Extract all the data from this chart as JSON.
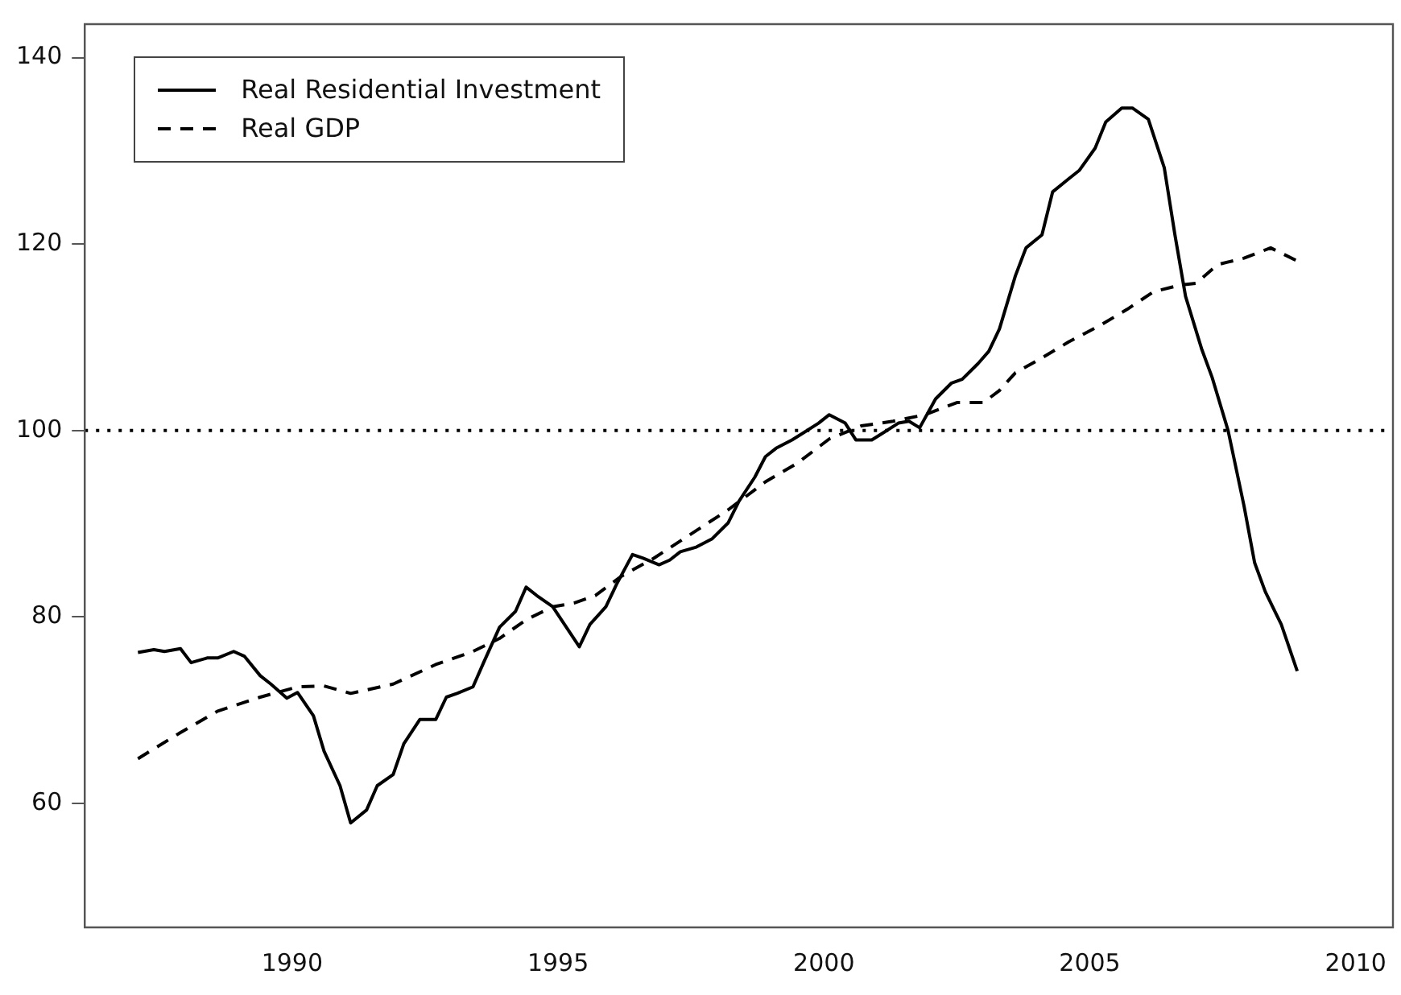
{
  "chart_data": {
    "type": "line",
    "legend": "top left",
    "grid": false,
    "xlim": [
      1986.1,
      2010.7
    ],
    "xticks": [
      1990,
      1995,
      2000,
      2005,
      2010
    ],
    "ylim": [
      46.7,
      143.6
    ],
    "yticks": [
      60,
      80,
      100,
      120,
      140
    ],
    "ref_lines": [
      {
        "axis": "y",
        "value": 100,
        "line_style": "dotted",
        "color": "#000000"
      }
    ],
    "series": [
      {
        "name": "Real Residential Investment",
        "color": "#000000",
        "line_style": "solid",
        "x": [
          1987.1,
          1987.4,
          1987.6,
          1987.9,
          1988.1,
          1988.4,
          1988.6,
          1988.9,
          1989.1,
          1989.4,
          1989.6,
          1989.9,
          1990.1,
          1990.4,
          1990.6,
          1990.9,
          1991.1,
          1991.4,
          1991.6,
          1991.9,
          1992.1,
          1992.4,
          1992.7,
          1992.9,
          1993.1,
          1993.4,
          1993.6,
          1993.9,
          1994.2,
          1994.4,
          1994.6,
          1994.9,
          1995.4,
          1995.6,
          1995.9,
          1996.1,
          1996.4,
          1996.6,
          1996.9,
          1997.1,
          1997.3,
          1997.6,
          1997.9,
          1998.2,
          1998.4,
          1998.7,
          1998.9,
          1999.1,
          1999.4,
          1999.6,
          1999.9,
          2000.1,
          2000.4,
          2000.6,
          2000.9,
          2001.1,
          2001.4,
          2001.6,
          2001.8,
          2002.1,
          2002.4,
          2002.6,
          2002.9,
          2003.1,
          2003.3,
          2003.6,
          2003.8,
          2004.1,
          2004.3,
          2004.6,
          2004.8,
          2005.1,
          2005.3,
          2005.6,
          2005.8,
          2006.1,
          2006.4,
          2006.6,
          2006.8,
          2007.1,
          2007.3,
          2007.6,
          2007.9,
          2008.1,
          2008.3,
          2008.6,
          2008.9
        ],
        "values": [
          76.2,
          76.5,
          76.3,
          76.6,
          75.1,
          75.6,
          75.6,
          76.3,
          75.8,
          73.7,
          72.8,
          71.3,
          71.9,
          69.4,
          65.6,
          61.9,
          57.9,
          59.3,
          61.9,
          63.1,
          66.4,
          69.0,
          69.0,
          71.4,
          71.8,
          72.5,
          75.1,
          78.9,
          80.6,
          83.2,
          82.3,
          81.1,
          76.8,
          79.2,
          81.1,
          83.5,
          86.7,
          86.3,
          85.6,
          86.1,
          87.0,
          87.5,
          88.4,
          90.1,
          92.4,
          95.0,
          97.2,
          98.1,
          99.0,
          99.7,
          100.8,
          101.7,
          100.8,
          99.0,
          99.0,
          99.7,
          100.8,
          101.0,
          100.3,
          103.4,
          105.1,
          105.5,
          107.2,
          108.5,
          110.9,
          116.6,
          119.6,
          121.0,
          125.6,
          127.0,
          127.9,
          130.3,
          133.1,
          134.6,
          134.6,
          133.4,
          128.2,
          121.0,
          114.4,
          108.8,
          105.7,
          100.0,
          91.9,
          85.8,
          82.7,
          79.2,
          74.2
        ]
      },
      {
        "name": "Real GDP",
        "color": "#000000",
        "line_style": "dashed",
        "x": [
          1987.1,
          1987.9,
          1988.6,
          1989.4,
          1990.1,
          1990.6,
          1991.1,
          1991.9,
          1992.7,
          1993.4,
          1993.9,
          1994.4,
          1994.9,
          1995.3,
          1995.7,
          1996.2,
          1996.8,
          1997.5,
          1998.2,
          1998.9,
          1999.5,
          2000.1,
          2000.7,
          2001.3,
          2001.9,
          2002.5,
          2003.0,
          2003.3,
          2003.6,
          2004.1,
          2004.6,
          2005.2,
          2005.7,
          2006.2,
          2006.7,
          2007.0,
          2007.4,
          2007.9,
          2008.4,
          2008.9
        ],
        "values": [
          64.8,
          67.6,
          69.9,
          71.4,
          72.5,
          72.6,
          71.8,
          72.8,
          74.9,
          76.3,
          77.7,
          79.7,
          81.1,
          81.5,
          82.3,
          84.4,
          86.3,
          88.9,
          91.5,
          94.5,
          96.5,
          99.1,
          100.5,
          101.0,
          101.7,
          103.0,
          103.0,
          104.3,
          106.2,
          107.8,
          109.5,
          111.3,
          113.0,
          114.9,
          115.6,
          115.8,
          117.8,
          118.5,
          119.6,
          118.2
        ]
      }
    ]
  }
}
